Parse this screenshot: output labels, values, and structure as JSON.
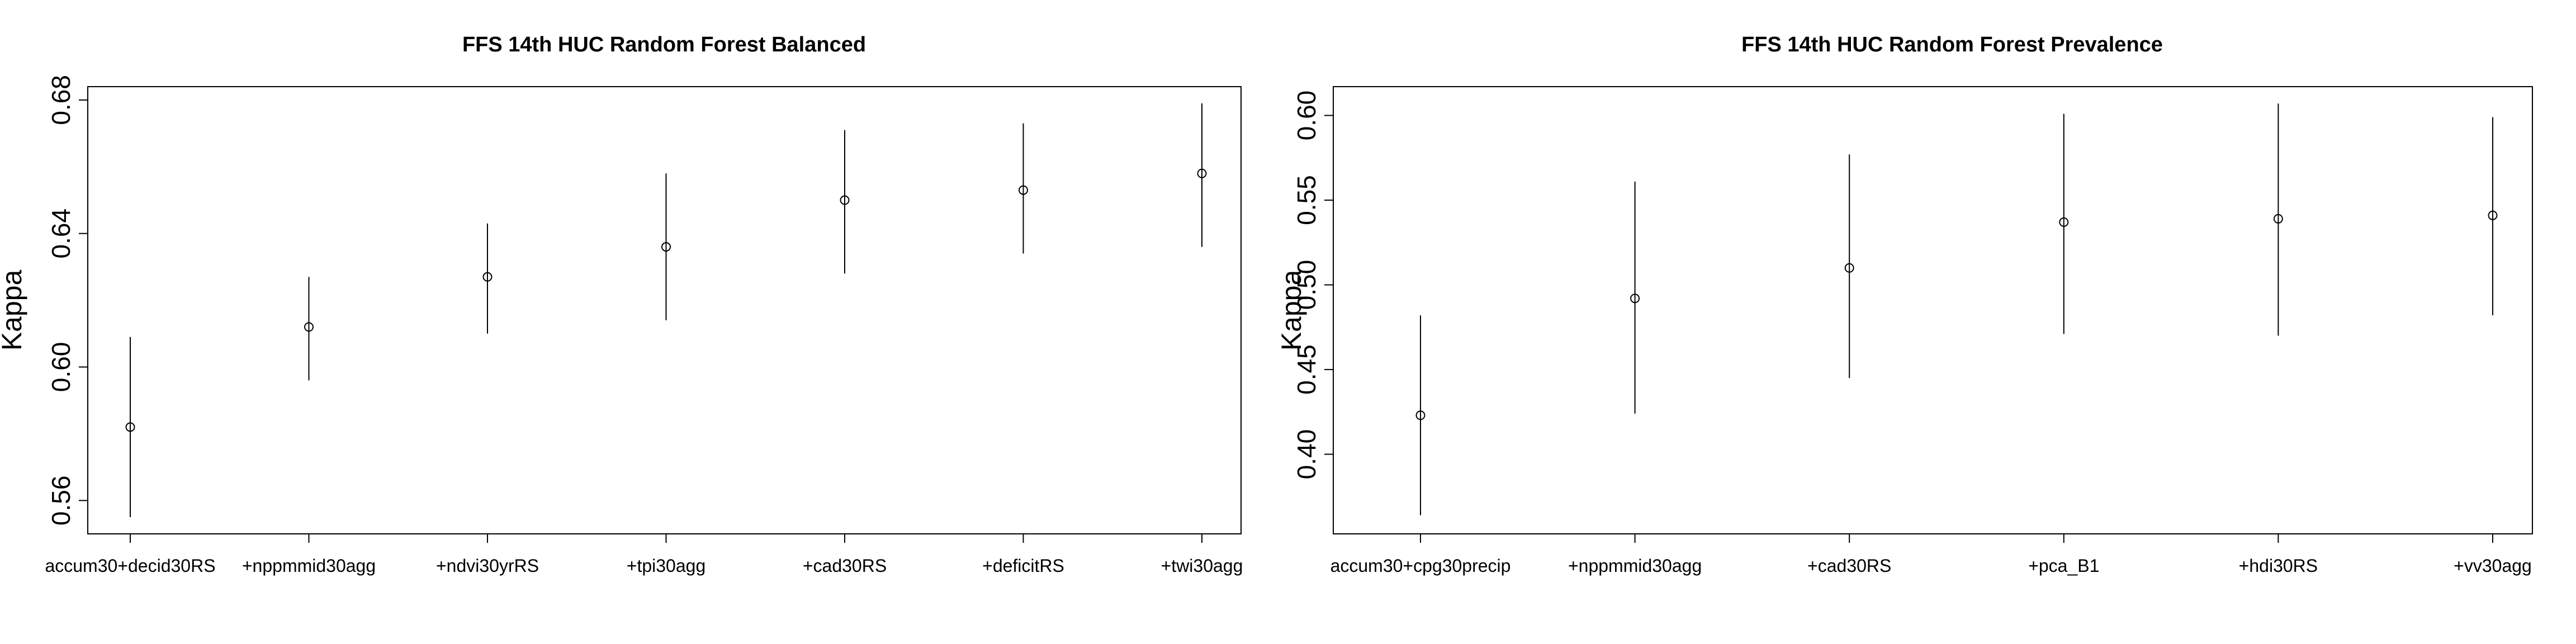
{
  "chart_data": [
    {
      "type": "scatter",
      "title": "FFS 14th HUC Random Forest Balanced",
      "ylabel": "Kappa",
      "xlabel": "",
      "categories": [
        "accum30+decid30RS",
        "+nppmmid30agg",
        "+ndvi30yrRS",
        "+tpi30agg",
        "+cad30RS",
        "+deficitRS",
        "+twi30agg"
      ],
      "values": [
        0.582,
        0.612,
        0.627,
        0.636,
        0.65,
        0.653,
        0.658
      ],
      "lower": [
        0.555,
        0.596,
        0.61,
        0.614,
        0.628,
        0.634,
        0.636
      ],
      "upper": [
        0.609,
        0.627,
        0.643,
        0.658,
        0.671,
        0.673,
        0.679
      ],
      "ylim": [
        0.55,
        0.684
      ],
      "yticks": [
        0.56,
        0.6,
        0.64,
        0.68
      ],
      "ytick_labels": [
        "0.56",
        "0.60",
        "0.64",
        "0.68"
      ],
      "grid": false,
      "legend": "none"
    },
    {
      "type": "scatter",
      "title": "FFS 14th HUC Random Forest Prevalence",
      "ylabel": "Kappa",
      "xlabel": "",
      "categories": [
        "accum30+cpg30precip",
        "+nppmmid30agg",
        "+cad30RS",
        "+pca_B1",
        "+hdi30RS",
        "+vv30agg"
      ],
      "values": [
        0.423,
        0.492,
        0.51,
        0.537,
        0.539,
        0.541
      ],
      "lower": [
        0.364,
        0.424,
        0.445,
        0.471,
        0.47,
        0.482
      ],
      "upper": [
        0.482,
        0.561,
        0.577,
        0.601,
        0.607,
        0.599
      ],
      "ylim": [
        0.353,
        0.617
      ],
      "yticks": [
        0.4,
        0.45,
        0.5,
        0.55,
        0.6
      ],
      "ytick_labels": [
        "0.40",
        "0.45",
        "0.50",
        "0.55",
        "0.60"
      ],
      "grid": false,
      "legend": "none"
    }
  ]
}
